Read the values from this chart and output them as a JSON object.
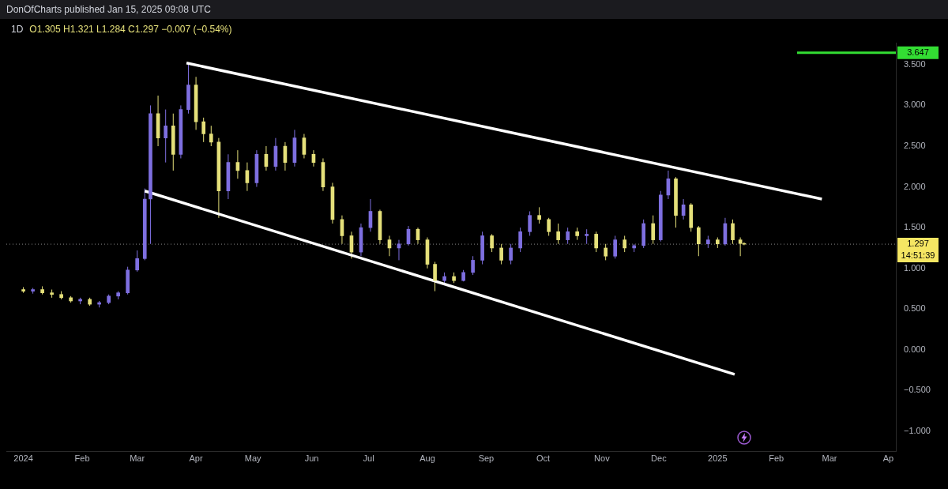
{
  "chart_data": {
    "type": "candlestick",
    "title": "1D",
    "subtitle": "O1.305 H1.321 L1.284 C1.297 −0.007 (−0.54%)",
    "annotations": [
      "DonOfCharts published Jan 15, 2025 09:08 UTC",
      "14:51:39"
    ],
    "x": [
      "2024-01-01",
      "2024-01-06",
      "2024-01-11",
      "2024-01-16",
      "2024-01-21",
      "2024-01-26",
      "2024-01-31",
      "2024-02-05",
      "2024-02-10",
      "2024-02-15",
      "2024-02-20",
      "2024-02-25",
      "2024-03-01",
      "2024-03-05",
      "2024-03-08",
      "2024-03-12",
      "2024-03-16",
      "2024-03-20",
      "2024-03-24",
      "2024-03-28",
      "2024-04-01",
      "2024-04-05",
      "2024-04-09",
      "2024-04-13",
      "2024-04-18",
      "2024-04-23",
      "2024-04-28",
      "2024-05-03",
      "2024-05-08",
      "2024-05-13",
      "2024-05-18",
      "2024-05-23",
      "2024-05-28",
      "2024-06-02",
      "2024-06-07",
      "2024-06-12",
      "2024-06-17",
      "2024-06-22",
      "2024-06-27",
      "2024-07-02",
      "2024-07-07",
      "2024-07-12",
      "2024-07-17",
      "2024-07-22",
      "2024-07-27",
      "2024-08-01",
      "2024-08-05",
      "2024-08-10",
      "2024-08-15",
      "2024-08-20",
      "2024-08-25",
      "2024-08-30",
      "2024-09-04",
      "2024-09-09",
      "2024-09-14",
      "2024-09-19",
      "2024-09-24",
      "2024-09-29",
      "2024-10-04",
      "2024-10-09",
      "2024-10-14",
      "2024-10-19",
      "2024-10-24",
      "2024-10-29",
      "2024-11-03",
      "2024-11-08",
      "2024-11-13",
      "2024-11-18",
      "2024-11-23",
      "2024-11-28",
      "2024-12-02",
      "2024-12-06",
      "2024-12-10",
      "2024-12-14",
      "2024-12-18",
      "2024-12-22",
      "2024-12-27",
      "2025-01-01",
      "2025-01-05",
      "2025-01-09",
      "2025-01-13",
      "2025-01-15"
    ],
    "ohlc": [
      [
        0.74,
        0.77,
        0.7,
        0.72
      ],
      [
        0.72,
        0.76,
        0.69,
        0.74
      ],
      [
        0.74,
        0.78,
        0.68,
        0.7
      ],
      [
        0.7,
        0.74,
        0.64,
        0.68
      ],
      [
        0.68,
        0.72,
        0.62,
        0.64
      ],
      [
        0.64,
        0.66,
        0.58,
        0.6
      ],
      [
        0.6,
        0.64,
        0.56,
        0.62
      ],
      [
        0.62,
        0.64,
        0.54,
        0.56
      ],
      [
        0.56,
        0.6,
        0.52,
        0.58
      ],
      [
        0.58,
        0.68,
        0.56,
        0.66
      ],
      [
        0.66,
        0.72,
        0.62,
        0.7
      ],
      [
        0.7,
        1.02,
        0.68,
        0.98
      ],
      [
        0.98,
        1.22,
        0.96,
        1.12
      ],
      [
        1.12,
        1.98,
        1.1,
        1.85
      ],
      [
        1.85,
        3.0,
        1.3,
        2.9
      ],
      [
        2.9,
        3.12,
        2.5,
        2.6
      ],
      [
        2.6,
        2.95,
        2.3,
        2.75
      ],
      [
        2.75,
        2.9,
        2.2,
        2.4
      ],
      [
        2.4,
        3.0,
        2.35,
        2.95
      ],
      [
        2.95,
        3.5,
        2.9,
        3.25
      ],
      [
        3.25,
        3.35,
        2.7,
        2.8
      ],
      [
        2.8,
        2.85,
        2.55,
        2.65
      ],
      [
        2.65,
        2.75,
        2.5,
        2.55
      ],
      [
        2.55,
        2.6,
        1.62,
        1.95
      ],
      [
        1.95,
        2.4,
        1.85,
        2.3
      ],
      [
        2.3,
        2.45,
        2.1,
        2.2
      ],
      [
        2.2,
        2.3,
        1.95,
        2.05
      ],
      [
        2.05,
        2.45,
        2.0,
        2.4
      ],
      [
        2.4,
        2.5,
        2.2,
        2.25
      ],
      [
        2.25,
        2.6,
        2.2,
        2.5
      ],
      [
        2.5,
        2.55,
        2.2,
        2.3
      ],
      [
        2.3,
        2.7,
        2.25,
        2.6
      ],
      [
        2.6,
        2.65,
        2.35,
        2.4
      ],
      [
        2.4,
        2.45,
        2.25,
        2.3
      ],
      [
        2.3,
        2.35,
        1.95,
        2.0
      ],
      [
        2.0,
        2.05,
        1.55,
        1.6
      ],
      [
        1.6,
        1.65,
        1.3,
        1.4
      ],
      [
        1.4,
        1.45,
        1.12,
        1.2
      ],
      [
        1.2,
        1.55,
        1.15,
        1.5
      ],
      [
        1.5,
        1.85,
        1.45,
        1.7
      ],
      [
        1.7,
        1.72,
        1.3,
        1.35
      ],
      [
        1.35,
        1.4,
        1.15,
        1.25
      ],
      [
        1.25,
        1.35,
        1.1,
        1.3
      ],
      [
        1.3,
        1.52,
        1.28,
        1.48
      ],
      [
        1.48,
        1.5,
        1.3,
        1.35
      ],
      [
        1.35,
        1.38,
        1.0,
        1.05
      ],
      [
        1.05,
        1.08,
        0.72,
        0.85
      ],
      [
        0.85,
        0.95,
        0.8,
        0.9
      ],
      [
        0.9,
        0.95,
        0.82,
        0.85
      ],
      [
        0.85,
        0.98,
        0.84,
        0.95
      ],
      [
        0.95,
        1.15,
        0.92,
        1.1
      ],
      [
        1.1,
        1.45,
        1.05,
        1.4
      ],
      [
        1.4,
        1.42,
        1.2,
        1.25
      ],
      [
        1.25,
        1.3,
        1.05,
        1.1
      ],
      [
        1.1,
        1.3,
        1.05,
        1.25
      ],
      [
        1.25,
        1.5,
        1.2,
        1.45
      ],
      [
        1.45,
        1.7,
        1.4,
        1.65
      ],
      [
        1.65,
        1.75,
        1.55,
        1.6
      ],
      [
        1.6,
        1.62,
        1.4,
        1.45
      ],
      [
        1.45,
        1.55,
        1.3,
        1.35
      ],
      [
        1.35,
        1.5,
        1.3,
        1.45
      ],
      [
        1.45,
        1.5,
        1.35,
        1.4
      ],
      [
        1.4,
        1.48,
        1.3,
        1.42
      ],
      [
        1.42,
        1.45,
        1.2,
        1.25
      ],
      [
        1.25,
        1.3,
        1.1,
        1.15
      ],
      [
        1.15,
        1.4,
        1.12,
        1.35
      ],
      [
        1.35,
        1.4,
        1.2,
        1.25
      ],
      [
        1.25,
        1.3,
        1.2,
        1.28
      ],
      [
        1.28,
        1.6,
        1.25,
        1.55
      ],
      [
        1.55,
        1.65,
        1.3,
        1.35
      ],
      [
        1.35,
        1.95,
        1.33,
        1.9
      ],
      [
        1.9,
        2.2,
        1.85,
        2.1
      ],
      [
        2.1,
        2.12,
        1.5,
        1.65
      ],
      [
        1.65,
        1.85,
        1.6,
        1.78
      ],
      [
        1.78,
        1.8,
        1.45,
        1.5
      ],
      [
        1.5,
        1.52,
        1.15,
        1.3
      ],
      [
        1.3,
        1.4,
        1.25,
        1.35
      ],
      [
        1.35,
        1.38,
        1.25,
        1.3
      ],
      [
        1.3,
        1.62,
        1.28,
        1.55
      ],
      [
        1.55,
        1.6,
        1.3,
        1.35
      ],
      [
        1.35,
        1.38,
        1.15,
        1.305
      ],
      [
        1.305,
        1.321,
        1.284,
        1.297
      ]
    ],
    "colors": [
      "#e5e07a",
      "#7e6fe0",
      "#e5e07a",
      "#e5e07a",
      "#e5e07a",
      "#e5e07a",
      "#7e6fe0",
      "#e5e07a",
      "#7e6fe0",
      "#7e6fe0",
      "#7e6fe0",
      "#7e6fe0",
      "#7e6fe0",
      "#7e6fe0",
      "#7e6fe0",
      "#e5e07a",
      "#7e6fe0",
      "#e5e07a",
      "#7e6fe0",
      "#7e6fe0",
      "#e5e07a",
      "#e5e07a",
      "#e5e07a",
      "#e5e07a",
      "#7e6fe0",
      "#e5e07a",
      "#e5e07a",
      "#7e6fe0",
      "#e5e07a",
      "#7e6fe0",
      "#e5e07a",
      "#7e6fe0",
      "#e5e07a",
      "#e5e07a",
      "#e5e07a",
      "#e5e07a",
      "#e5e07a",
      "#e5e07a",
      "#7e6fe0",
      "#7e6fe0",
      "#e5e07a",
      "#e5e07a",
      "#7e6fe0",
      "#7e6fe0",
      "#e5e07a",
      "#e5e07a",
      "#e5e07a",
      "#7e6fe0",
      "#e5e07a",
      "#7e6fe0",
      "#7e6fe0",
      "#7e6fe0",
      "#e5e07a",
      "#e5e07a",
      "#7e6fe0",
      "#7e6fe0",
      "#7e6fe0",
      "#e5e07a",
      "#e5e07a",
      "#e5e07a",
      "#7e6fe0",
      "#e5e07a",
      "#7e6fe0",
      "#e5e07a",
      "#e5e07a",
      "#7e6fe0",
      "#e5e07a",
      "#7e6fe0",
      "#7e6fe0",
      "#e5e07a",
      "#7e6fe0",
      "#7e6fe0",
      "#e5e07a",
      "#7e6fe0",
      "#e5e07a",
      "#e5e07a",
      "#7e6fe0",
      "#e5e07a",
      "#7e6fe0",
      "#e5e07a",
      "#e5e07a",
      "#e5e07a"
    ],
    "series": [
      {
        "type": "line",
        "color": "#ffffff",
        "x": [
          "2024-03-27",
          "2025-02-25"
        ],
        "values": [
          3.52,
          1.85
        ]
      },
      {
        "type": "line",
        "color": "#ffffff",
        "x": [
          "2024-03-05",
          "2025-01-10"
        ],
        "values": [
          1.95,
          -0.3
        ]
      }
    ],
    "xlim": [
      "2023-12-23",
      "2025-04-05"
    ],
    "xticks": [
      {
        "value": "2024-01-01",
        "label": "2024"
      },
      {
        "value": "2024-02-01",
        "label": "Feb"
      },
      {
        "value": "2024-03-01",
        "label": "Mar"
      },
      {
        "value": "2024-04-01",
        "label": "Apr"
      },
      {
        "value": "2024-05-01",
        "label": "May"
      },
      {
        "value": "2024-06-01",
        "label": "Jun"
      },
      {
        "value": "2024-07-01",
        "label": "Jul"
      },
      {
        "value": "2024-08-01",
        "label": "Aug"
      },
      {
        "value": "2024-09-01",
        "label": "Sep"
      },
      {
        "value": "2024-10-01",
        "label": "Oct"
      },
      {
        "value": "2024-11-01",
        "label": "Nov"
      },
      {
        "value": "2024-12-01",
        "label": "Dec"
      },
      {
        "value": "2025-01-01",
        "label": "2025"
      },
      {
        "value": "2025-02-01",
        "label": "Feb"
      },
      {
        "value": "2025-03-01",
        "label": "Mar"
      },
      {
        "value": "2025-04-01",
        "label": "Ap"
      }
    ],
    "ylim": [
      -1.25,
      3.77
    ],
    "yticks": [
      {
        "value": -1,
        "label": "−1.000"
      },
      {
        "value": -0.5,
        "label": "−0.500"
      },
      {
        "value": 0,
        "label": "0.000"
      },
      {
        "value": 0.5,
        "label": "0.500"
      },
      {
        "value": 1,
        "label": "1.000"
      },
      {
        "value": 1.5,
        "label": "1.500"
      },
      {
        "value": 2,
        "label": "2.000"
      },
      {
        "value": 2.5,
        "label": "2.500"
      },
      {
        "value": 3,
        "label": "3.000"
      },
      {
        "value": 3.5,
        "label": "3.500"
      }
    ],
    "ref_lines": [
      {
        "axis": "y",
        "value": 3.647,
        "label": "3.647",
        "color": "#33dd33",
        "line_style": "solid"
      },
      {
        "axis": "y",
        "value": 1.297,
        "label": "1.297",
        "color": "#888888",
        "line_style": "dotted"
      }
    ],
    "legend": false
  }
}
